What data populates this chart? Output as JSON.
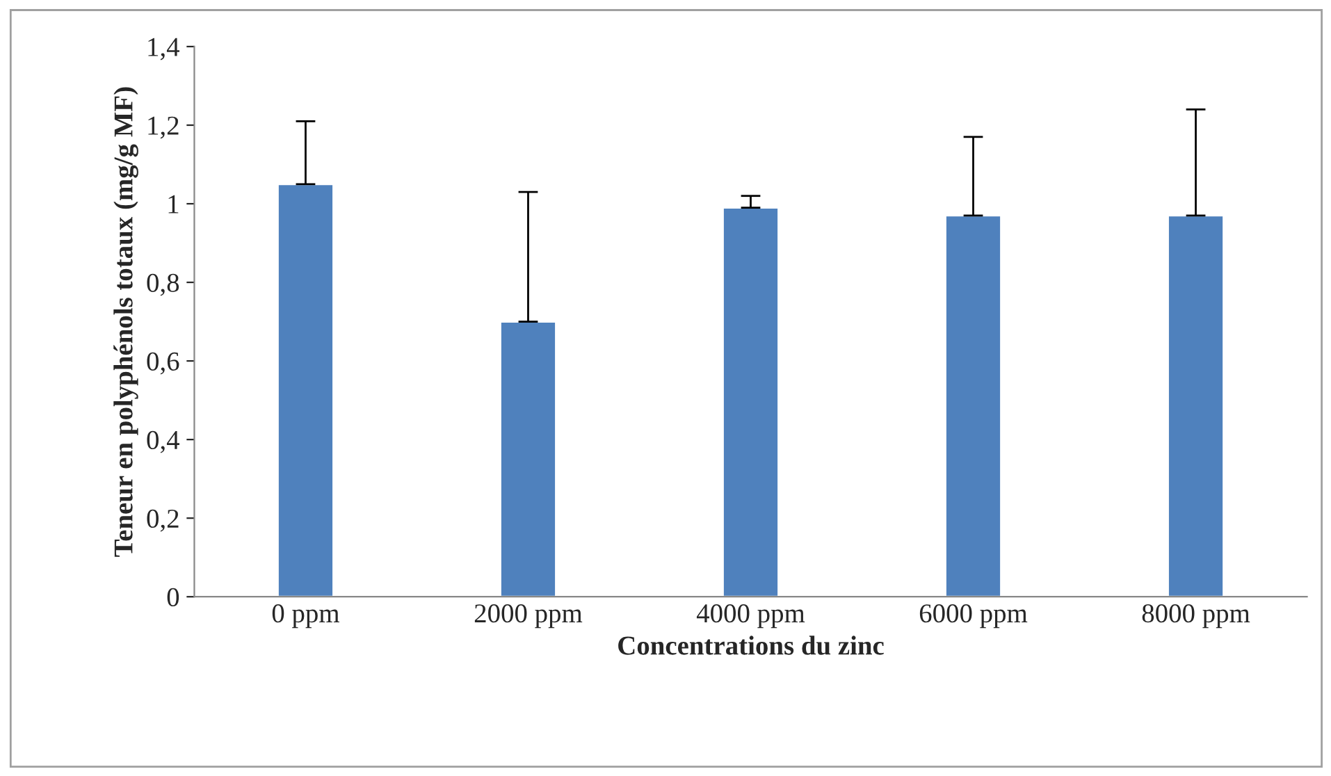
{
  "chart_data": {
    "type": "bar",
    "xlabel": "Concentrations du zinc",
    "ylabel": "Teneur en polyphénols totaux (mg/g MF)",
    "categories": [
      "0 ppm",
      "2000 ppm",
      "4000 ppm",
      "6000 ppm",
      "8000 ppm"
    ],
    "values": [
      1.05,
      0.7,
      0.99,
      0.97,
      0.97
    ],
    "errors": [
      [
        1.05,
        1.21
      ],
      [
        0.7,
        1.03
      ],
      [
        0.99,
        1.02
      ],
      [
        0.97,
        1.17
      ],
      [
        0.97,
        1.24
      ]
    ],
    "color": "#4f81bd",
    "ylim": [
      0,
      1.4
    ],
    "yticks": [
      {
        "value": 0,
        "label": "0"
      },
      {
        "value": 0.2,
        "label": "0,2"
      },
      {
        "value": 0.4,
        "label": "0,4"
      },
      {
        "value": 0.6,
        "label": "0,6"
      },
      {
        "value": 0.8,
        "label": "0,8"
      },
      {
        "value": 1,
        "label": "1"
      },
      {
        "value": 1.2,
        "label": "1,2"
      },
      {
        "value": 1.4,
        "label": "1,4"
      }
    ],
    "grid": false,
    "legend": false
  }
}
